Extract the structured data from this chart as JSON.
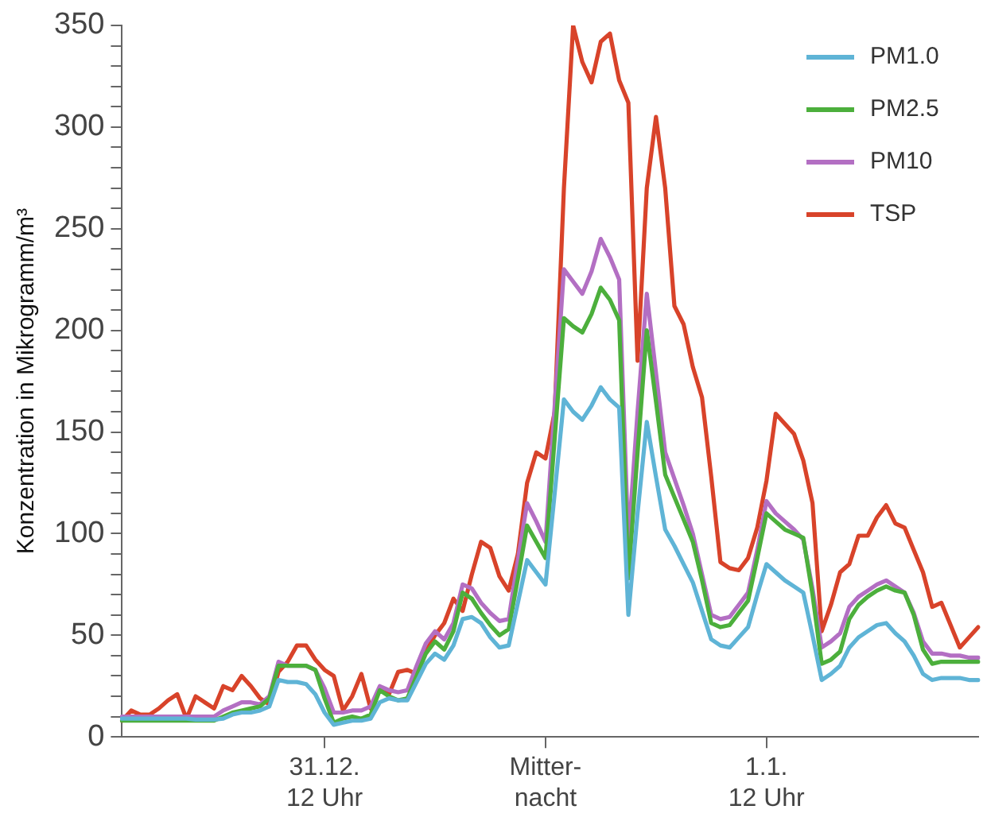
{
  "chart_data": {
    "type": "line",
    "ylabel": "Konzentration in Mikrogramm/m³",
    "ylim": [
      0,
      350
    ],
    "categories": [
      null,
      null,
      null,
      null,
      null,
      null,
      null,
      null,
      null,
      null,
      null,
      null,
      null,
      null,
      null,
      null,
      null,
      null,
      null,
      null,
      null,
      null,
      "31.12.\n12 Uhr",
      null,
      null,
      null,
      null,
      null,
      null,
      null,
      null,
      null,
      null,
      null,
      null,
      null,
      null,
      null,
      null,
      null,
      null,
      null,
      null,
      null,
      null,
      null,
      "Mitter-\nnacht",
      null,
      null,
      null,
      null,
      null,
      null,
      null,
      null,
      null,
      null,
      null,
      null,
      null,
      null,
      null,
      null,
      null,
      null,
      null,
      null,
      null,
      null,
      null,
      "1.1.\n12 Uhr",
      null,
      null,
      null,
      null,
      null,
      null,
      null,
      null,
      null,
      null,
      null,
      null,
      null,
      null,
      null,
      null,
      null,
      null,
      null,
      null,
      null,
      null,
      null
    ],
    "yticks": [
      0,
      {
        "value": 10,
        "label": null
      },
      {
        "value": 20,
        "label": null
      },
      {
        "value": 30,
        "label": null
      },
      {
        "value": 40,
        "label": null
      },
      50,
      {
        "value": 60,
        "label": null
      },
      {
        "value": 70,
        "label": null
      },
      {
        "value": 80,
        "label": null
      },
      {
        "value": 90,
        "label": null
      },
      100,
      {
        "value": 110,
        "label": null
      },
      {
        "value": 120,
        "label": null
      },
      {
        "value": 130,
        "label": null
      },
      {
        "value": 140,
        "label": null
      },
      150,
      {
        "value": 160,
        "label": null
      },
      {
        "value": 170,
        "label": null
      },
      {
        "value": 180,
        "label": null
      },
      {
        "value": 190,
        "label": null
      },
      200,
      {
        "value": 210,
        "label": null
      },
      {
        "value": 220,
        "label": null
      },
      {
        "value": 230,
        "label": null
      },
      {
        "value": 240,
        "label": null
      },
      250,
      {
        "value": 260,
        "label": null
      },
      {
        "value": 270,
        "label": null
      },
      {
        "value": 280,
        "label": null
      },
      {
        "value": 290,
        "label": null
      },
      300,
      {
        "value": 310,
        "label": null
      },
      {
        "value": 320,
        "label": null
      },
      {
        "value": 330,
        "label": null
      },
      {
        "value": 340,
        "label": null
      },
      350
    ],
    "grid": false,
    "legend": "top right",
    "marker": "none",
    "line_style": "solid",
    "series": [
      {
        "name": "PM1.0",
        "color": "#5fb4d6",
        "values": [
          9,
          9,
          9,
          9,
          9,
          9,
          9,
          9,
          8.5,
          8.5,
          8.5,
          9,
          11,
          12,
          12,
          13,
          15,
          28,
          27,
          27,
          26,
          21,
          12,
          6,
          7,
          8,
          8,
          9,
          17,
          19,
          18,
          18,
          27,
          36,
          41,
          38,
          45,
          58,
          59,
          56,
          49,
          44,
          45,
          66,
          87,
          81,
          75,
          120,
          166,
          160,
          156,
          163,
          172,
          166,
          162,
          60,
          110,
          155,
          128,
          102,
          94,
          85,
          76,
          62,
          48,
          45,
          44,
          49,
          54,
          70,
          85,
          81,
          77,
          74,
          71,
          50,
          28,
          31,
          35,
          44,
          49,
          52,
          55,
          56,
          51,
          47,
          40,
          31,
          28,
          29,
          29,
          29,
          28,
          28
        ]
      },
      {
        "name": "PM2.5",
        "color": "#4caf3c",
        "values": [
          8,
          8,
          8,
          8,
          8,
          8,
          8,
          8,
          8,
          8,
          8,
          10,
          12,
          13,
          14,
          15,
          19,
          35,
          35,
          35,
          35,
          33,
          19,
          7,
          9,
          10,
          9,
          11,
          23,
          20,
          18,
          19,
          30,
          41,
          47,
          43,
          52,
          71,
          68,
          61,
          55,
          50,
          53,
          78,
          104,
          96,
          88,
          147,
          206,
          202,
          199,
          208,
          221,
          215,
          205,
          78,
          140,
          200,
          165,
          129,
          118,
          107,
          96,
          77,
          56,
          54,
          55,
          61,
          67,
          88,
          110,
          106,
          102,
          100,
          98,
          70,
          36,
          38,
          42,
          58,
          65,
          69,
          72,
          74,
          72,
          71,
          60,
          43,
          36,
          37,
          37,
          37,
          37,
          37
        ]
      },
      {
        "name": "PM10",
        "color": "#b36fc3",
        "values": [
          10,
          10,
          10,
          10,
          10,
          10,
          10,
          10,
          10,
          10,
          10,
          13,
          15,
          17,
          17,
          16,
          20,
          37,
          35,
          35,
          35,
          33,
          24,
          12,
          12,
          13,
          13,
          15,
          25,
          23,
          22,
          23,
          35,
          46,
          52,
          48,
          56,
          75,
          73,
          66,
          61,
          57,
          58,
          87,
          115,
          106,
          96,
          163,
          230,
          224,
          218,
          229,
          245,
          236,
          225,
          96,
          160,
          218,
          179,
          140,
          127,
          114,
          100,
          80,
          60,
          58,
          59,
          65,
          71,
          92,
          116,
          110,
          106,
          102,
          97,
          73,
          44,
          47,
          51,
          64,
          69,
          72,
          75,
          77,
          74,
          71,
          61,
          47,
          41,
          41,
          40,
          40,
          39,
          39
        ]
      },
      {
        "name": "TSP",
        "color": "#d8432a",
        "values": [
          8,
          13,
          11,
          11,
          14,
          18,
          21,
          9,
          20,
          17,
          14,
          25,
          23,
          30,
          25,
          19,
          16,
          32,
          37,
          45,
          45,
          38,
          33,
          30,
          13,
          20,
          31,
          14,
          23,
          21,
          32,
          33,
          31,
          42,
          50,
          56,
          68,
          62,
          80,
          96,
          93,
          79,
          72,
          90,
          125,
          140,
          137,
          160,
          270,
          350,
          332,
          322,
          342,
          346,
          323,
          312,
          185,
          270,
          305,
          270,
          212,
          203,
          182,
          167,
          128,
          86,
          83,
          82,
          88,
          103,
          126,
          159,
          154,
          149,
          136,
          115,
          52,
          65,
          81,
          85,
          99,
          99,
          108,
          114,
          105,
          103,
          92,
          81,
          64,
          66,
          55,
          44,
          49,
          54
        ]
      }
    ]
  }
}
